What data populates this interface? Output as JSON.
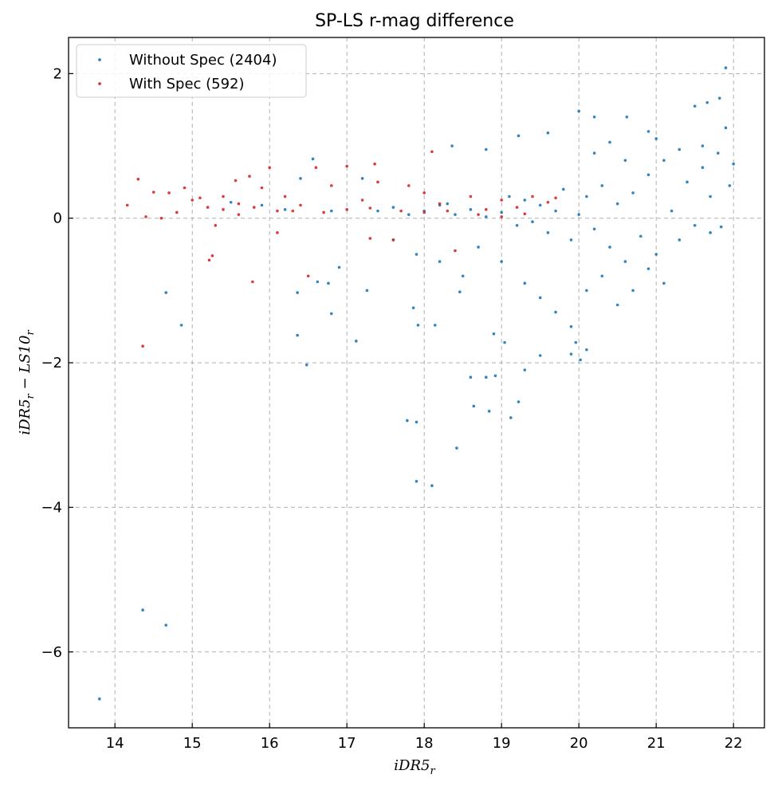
{
  "chart_data": {
    "type": "scatter",
    "title": "SP-LS r-mag difference",
    "xlabel": "iDR5_r",
    "ylabel": "iDR5_r − LS10_r",
    "xlim": [
      13.4,
      22.4
    ],
    "ylim": [
      -7.05,
      2.5
    ],
    "x_ticks": [
      14,
      15,
      16,
      17,
      18,
      19,
      20,
      21,
      22
    ],
    "y_ticks": [
      2,
      0,
      -2,
      -4,
      -6
    ],
    "y_tick_labels": [
      "2",
      "0",
      "−2",
      "−4",
      "−6"
    ],
    "grid": true,
    "legend_position": "top-left",
    "series": [
      {
        "name": "Without Spec (2404)",
        "color": "#1f77b4",
        "points": [
          [
            13.8,
            -6.65
          ],
          [
            14.36,
            -5.42
          ],
          [
            14.66,
            -5.63
          ],
          [
            14.66,
            -1.03
          ],
          [
            14.86,
            -1.48
          ],
          [
            16.36,
            -1.62
          ],
          [
            16.36,
            -1.03
          ],
          [
            16.48,
            -2.03
          ],
          [
            16.62,
            -0.88
          ],
          [
            16.76,
            -0.9
          ],
          [
            16.8,
            -1.32
          ],
          [
            16.9,
            -0.68
          ],
          [
            17.12,
            -1.7
          ],
          [
            17.26,
            -1.0
          ],
          [
            17.78,
            -2.8
          ],
          [
            17.86,
            -1.24
          ],
          [
            17.9,
            -3.64
          ],
          [
            17.9,
            -2.82
          ],
          [
            17.92,
            -1.48
          ],
          [
            18.1,
            -3.7
          ],
          [
            18.14,
            -1.48
          ],
          [
            18.42,
            -3.18
          ],
          [
            18.46,
            -1.02
          ],
          [
            18.6,
            -2.2
          ],
          [
            18.64,
            -2.6
          ],
          [
            18.8,
            -2.2
          ],
          [
            18.84,
            -2.67
          ],
          [
            18.9,
            -1.6
          ],
          [
            18.92,
            -2.18
          ],
          [
            19.04,
            -1.72
          ],
          [
            19.12,
            -2.76
          ],
          [
            19.22,
            -2.54
          ],
          [
            19.3,
            -2.1
          ],
          [
            19.5,
            -1.9
          ],
          [
            19.6,
            1.18
          ],
          [
            19.9,
            -1.88
          ],
          [
            19.96,
            -1.72
          ],
          [
            20.0,
            1.48
          ],
          [
            20.02,
            -1.96
          ],
          [
            20.1,
            -1.82
          ],
          [
            20.2,
            1.4
          ],
          [
            20.62,
            1.4
          ],
          [
            20.9,
            1.2
          ],
          [
            21.5,
            1.55
          ],
          [
            21.66,
            1.6
          ],
          [
            21.82,
            1.66
          ],
          [
            21.9,
            2.08
          ],
          [
            21.9,
            1.25
          ],
          [
            21.84,
            -0.12
          ],
          [
            21.7,
            -0.2
          ],
          [
            16.56,
            0.82
          ],
          [
            16.4,
            0.55
          ],
          [
            18.36,
            1.0
          ],
          [
            18.3,
            0.2
          ],
          [
            18.8,
            0.95
          ],
          [
            19.22,
            1.14
          ],
          [
            17.2,
            0.55
          ],
          [
            15.5,
            0.22
          ],
          [
            15.9,
            0.18
          ],
          [
            16.2,
            0.12
          ],
          [
            16.8,
            0.1
          ],
          [
            17.4,
            0.1
          ],
          [
            17.6,
            0.15
          ],
          [
            17.8,
            0.05
          ],
          [
            18.0,
            0.1
          ],
          [
            18.2,
            0.18
          ],
          [
            18.4,
            0.05
          ],
          [
            18.6,
            0.12
          ],
          [
            18.8,
            0.02
          ],
          [
            19.0,
            0.08
          ],
          [
            19.1,
            0.3
          ],
          [
            19.2,
            -0.1
          ],
          [
            19.3,
            0.25
          ],
          [
            19.4,
            -0.05
          ],
          [
            19.5,
            0.18
          ],
          [
            19.6,
            -0.2
          ],
          [
            19.7,
            0.1
          ],
          [
            19.8,
            0.4
          ],
          [
            19.9,
            -0.3
          ],
          [
            20.0,
            0.05
          ],
          [
            20.1,
            0.3
          ],
          [
            20.2,
            -0.15
          ],
          [
            20.3,
            0.45
          ],
          [
            20.4,
            -0.4
          ],
          [
            20.5,
            0.2
          ],
          [
            20.6,
            -0.6
          ],
          [
            20.7,
            0.35
          ],
          [
            20.8,
            -0.25
          ],
          [
            20.9,
            0.6
          ],
          [
            21.0,
            -0.5
          ],
          [
            21.1,
            0.8
          ],
          [
            21.2,
            0.1
          ],
          [
            21.3,
            -0.3
          ],
          [
            21.4,
            0.5
          ],
          [
            21.5,
            -0.1
          ],
          [
            21.6,
            0.7
          ],
          [
            21.7,
            0.3
          ],
          [
            21.8,
            0.9
          ],
          [
            21.95,
            0.45
          ],
          [
            22.0,
            0.75
          ],
          [
            19.3,
            -0.9
          ],
          [
            19.5,
            -1.1
          ],
          [
            19.7,
            -1.3
          ],
          [
            19.9,
            -1.5
          ],
          [
            20.1,
            -1.0
          ],
          [
            20.3,
            -0.8
          ],
          [
            20.5,
            -1.2
          ],
          [
            20.7,
            -1.0
          ],
          [
            20.9,
            -0.7
          ],
          [
            21.1,
            -0.9
          ],
          [
            19.0,
            -0.6
          ],
          [
            18.7,
            -0.4
          ],
          [
            18.5,
            -0.8
          ],
          [
            18.2,
            -0.6
          ],
          [
            17.9,
            -0.5
          ],
          [
            17.6,
            -0.3
          ],
          [
            20.2,
            0.9
          ],
          [
            20.6,
            0.8
          ],
          [
            20.4,
            1.05
          ],
          [
            21.0,
            1.1
          ],
          [
            21.3,
            0.95
          ],
          [
            21.6,
            1.0
          ]
        ]
      },
      {
        "name": "With Spec (592)",
        "color": "#d62728",
        "points": [
          [
            14.16,
            0.18
          ],
          [
            14.3,
            0.54
          ],
          [
            14.36,
            -1.77
          ],
          [
            14.4,
            0.02
          ],
          [
            14.5,
            0.36
          ],
          [
            14.7,
            0.35
          ],
          [
            14.8,
            0.08
          ],
          [
            14.9,
            0.42
          ],
          [
            15.0,
            0.25
          ],
          [
            15.1,
            0.28
          ],
          [
            15.22,
            -0.58
          ],
          [
            15.26,
            -0.52
          ],
          [
            15.4,
            0.3
          ],
          [
            15.56,
            0.52
          ],
          [
            15.6,
            0.05
          ],
          [
            15.74,
            0.58
          ],
          [
            15.78,
            -0.88
          ],
          [
            15.9,
            0.42
          ],
          [
            16.0,
            0.7
          ],
          [
            16.2,
            0.3
          ],
          [
            16.3,
            0.1
          ],
          [
            16.5,
            -0.8
          ],
          [
            16.6,
            0.7
          ],
          [
            16.8,
            0.45
          ],
          [
            17.0,
            0.72
          ],
          [
            17.2,
            0.25
          ],
          [
            17.36,
            0.75
          ],
          [
            17.4,
            0.5
          ],
          [
            17.6,
            -0.3
          ],
          [
            17.8,
            0.45
          ],
          [
            18.0,
            0.35
          ],
          [
            18.1,
            0.92
          ],
          [
            18.2,
            0.2
          ],
          [
            18.4,
            -0.45
          ],
          [
            18.6,
            0.3
          ],
          [
            18.8,
            0.12
          ],
          [
            19.0,
            0.25
          ],
          [
            19.2,
            0.15
          ],
          [
            19.4,
            0.3
          ],
          [
            19.6,
            0.22
          ],
          [
            19.7,
            0.28
          ],
          [
            15.2,
            0.15
          ],
          [
            15.4,
            0.12
          ],
          [
            15.6,
            0.2
          ],
          [
            15.8,
            0.15
          ],
          [
            16.1,
            0.1
          ],
          [
            16.4,
            0.18
          ],
          [
            16.7,
            0.08
          ],
          [
            17.0,
            0.12
          ],
          [
            17.3,
            0.14
          ],
          [
            17.7,
            0.1
          ],
          [
            18.0,
            0.08
          ],
          [
            18.3,
            0.1
          ],
          [
            18.7,
            0.05
          ],
          [
            19.0,
            0.02
          ],
          [
            19.3,
            0.06
          ],
          [
            17.3,
            -0.28
          ],
          [
            16.1,
            -0.2
          ],
          [
            15.3,
            -0.1
          ],
          [
            14.6,
            0.0
          ]
        ]
      }
    ]
  }
}
